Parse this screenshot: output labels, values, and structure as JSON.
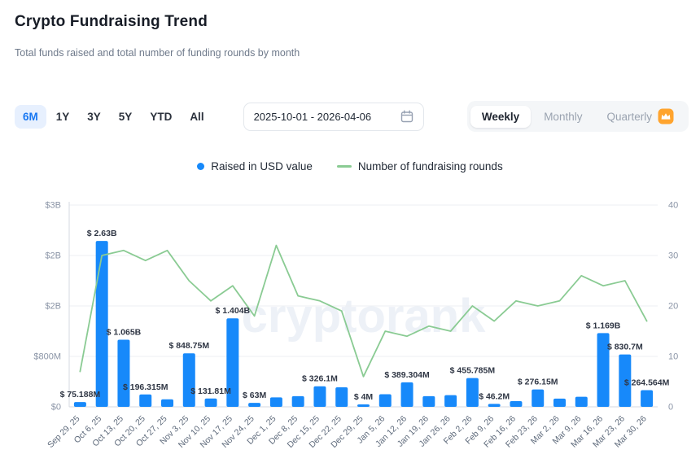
{
  "header": {
    "title": "Crypto Fundraising Trend",
    "subtitle": "Total funds raised and total number of funding rounds by month"
  },
  "controls": {
    "range_tabs": [
      {
        "label": "6M",
        "active": true
      },
      {
        "label": "1Y",
        "active": false
      },
      {
        "label": "3Y",
        "active": false
      },
      {
        "label": "5Y",
        "active": false
      },
      {
        "label": "YTD",
        "active": false
      },
      {
        "label": "All",
        "active": false
      }
    ],
    "date_range": "2025-10-01 - 2026-04-06",
    "interval_tabs": [
      {
        "label": "Weekly",
        "active": true
      },
      {
        "label": "Monthly",
        "active": false
      },
      {
        "label": "Quarterly",
        "active": false,
        "premium": true
      }
    ],
    "premium_badge_color": "#ffa42e"
  },
  "legend": {
    "items": [
      {
        "label": "Raised in USD value",
        "color": "#1789fa",
        "marker": "dot"
      },
      {
        "label": "Number of fundraising rounds",
        "color": "#8acb93",
        "marker": "line"
      }
    ]
  },
  "chart_data": {
    "type": "bar",
    "title": "Crypto Fundraising Trend",
    "watermark": "cryptorank",
    "categories": [
      "Sep 29, 25",
      "Oct 6, 25",
      "Oct 13, 25",
      "Oct 20, 25",
      "Oct 27, 25",
      "Nov 3, 25",
      "Nov 10, 25",
      "Nov 17, 25",
      "Nov 24, 25",
      "Dec 1, 25",
      "Dec 8, 25",
      "Dec 15, 25",
      "Dec 22, 25",
      "Dec 29, 25",
      "Jan 5, 26",
      "Jan 12, 26",
      "Jan 19, 26",
      "Jan 26, 26",
      "Feb 2, 26",
      "Feb 9, 26",
      "Feb 16, 26",
      "Feb 23, 26",
      "Mar 2, 26",
      "Mar 9, 26",
      "Mar 16, 26",
      "Mar 23, 26",
      "Mar 30, 26"
    ],
    "series": [
      {
        "name": "Raised in USD value",
        "type": "bar",
        "color": "#1789fa",
        "values_usd_m": [
          75.188,
          2630,
          1065,
          196.315,
          120,
          848.75,
          131.81,
          1404,
          63,
          150,
          170,
          326.1,
          310,
          4,
          200,
          389.304,
          170,
          185,
          455.785,
          46.2,
          90,
          276.15,
          130,
          160,
          1169,
          830.7,
          264.564
        ],
        "labels": [
          "$ 75.188M",
          "$ 2.63B",
          "$ 1.065B",
          "$ 196.315M",
          "",
          "$ 848.75M",
          "$ 131.81M",
          "$ 1.404B",
          "$ 63M",
          "",
          "",
          "$ 326.1M",
          "",
          "$ 4M",
          "",
          "$ 389.304M",
          "",
          "",
          "$ 455.785M",
          "$ 46.2M",
          "",
          "$ 276.15M",
          "",
          "",
          "$ 1.169B",
          "$ 830.7M",
          "$ 264.564M"
        ]
      },
      {
        "name": "Number of fundraising rounds",
        "type": "line",
        "color": "#8acb93",
        "values": [
          7,
          30,
          31,
          29,
          31,
          25,
          21,
          24,
          18,
          32,
          22,
          21,
          19,
          6,
          15,
          14,
          16,
          15,
          20,
          17,
          21,
          20,
          21,
          26,
          24,
          25,
          17
        ]
      }
    ],
    "y_left": {
      "max_usd_m": 3200,
      "ticks": [
        "$0",
        "$800M",
        "$2B",
        "$2B",
        "$3B"
      ]
    },
    "y_right": {
      "max": 40,
      "ticks": [
        "0",
        "10",
        "20",
        "30",
        "40"
      ]
    },
    "grid": true,
    "legend_position": "top-center"
  }
}
